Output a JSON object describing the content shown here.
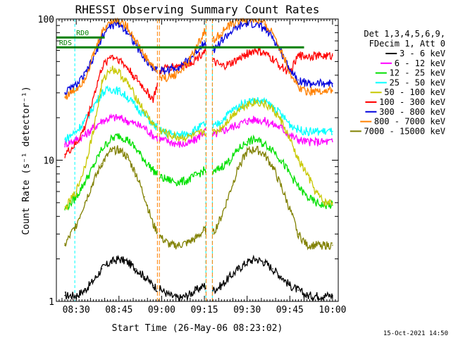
{
  "chart_data": {
    "type": "line",
    "title": "RHESSI Observing Summary Count Rates",
    "xlabel": "Start Time (26-May-06 08:23:02)",
    "ylabel": "Count Rate (s⁻¹ detector⁻¹)",
    "x_tick_labels": [
      "08:30",
      "08:45",
      "09:00",
      "09:15",
      "09:30",
      "09:45",
      "10:00"
    ],
    "x_tick_minutes": [
      510,
      525,
      540,
      555,
      570,
      585,
      600
    ],
    "xlim_minutes": [
      503.03,
      602.0
    ],
    "y_scale": "log",
    "ylim": [
      1,
      100
    ],
    "y_tick_labels": [
      "1",
      "10",
      "100"
    ],
    "y_tick_values": [
      1,
      10,
      100
    ],
    "grid": false,
    "legend_position": "right",
    "legend_header": [
      "Det 1,3,4,5,6,9,",
      "FDecim 1, Att 0"
    ],
    "gaps_minutes": [
      [
        538.5,
        539.2
      ],
      [
        555.6,
        557.8
      ]
    ],
    "sun_intervals_minutes": [
      [
        509.5,
        555.5
      ],
      [
        557.8,
        602
      ]
    ],
    "series": [
      {
        "name": "3 - 6 keV",
        "color": "#000000",
        "x": [
          506,
          510,
          513,
          516,
          519,
          522,
          525,
          528,
          531,
          534,
          537,
          540,
          543,
          546,
          549,
          552,
          555,
          558,
          561,
          564,
          567,
          570,
          573,
          576,
          579,
          582,
          585,
          588,
          591,
          594,
          597,
          600
        ],
        "y": [
          1.1,
          1.1,
          1.2,
          1.4,
          1.7,
          1.9,
          2.0,
          1.9,
          1.7,
          1.5,
          1.3,
          1.2,
          1.1,
          1.05,
          1.1,
          1.2,
          1.3,
          1.2,
          1.3,
          1.5,
          1.7,
          1.9,
          2.0,
          1.9,
          1.7,
          1.5,
          1.3,
          1.2,
          1.1,
          1.1,
          1.1,
          1.1
        ]
      },
      {
        "name": "6 - 12 keV",
        "color": "#ff00ff",
        "x": [
          506,
          510,
          513,
          516,
          519,
          522,
          525,
          528,
          531,
          534,
          537,
          540,
          543,
          546,
          549,
          552,
          555,
          558,
          561,
          564,
          567,
          570,
          573,
          576,
          579,
          582,
          585,
          588,
          591,
          594,
          597,
          600
        ],
        "y": [
          13,
          14,
          15,
          17,
          19,
          20,
          20,
          19,
          18,
          17,
          15,
          14,
          13.5,
          13,
          13,
          14,
          16,
          15,
          16,
          17,
          18,
          19,
          19.5,
          19,
          18,
          17,
          15,
          14,
          13.5,
          13.5,
          13.5,
          13.5
        ]
      },
      {
        "name": "12 - 25 keV",
        "color": "#00e000",
        "x": [
          506,
          510,
          513,
          516,
          519,
          522,
          525,
          528,
          531,
          534,
          537,
          540,
          543,
          546,
          549,
          552,
          555,
          558,
          561,
          564,
          567,
          570,
          573,
          576,
          579,
          582,
          585,
          588,
          591,
          594,
          597,
          600
        ],
        "y": [
          4.5,
          5.5,
          7,
          9,
          12,
          14,
          15,
          14,
          12,
          10,
          8.5,
          7.5,
          7.2,
          7,
          7.2,
          7.8,
          8.5,
          8,
          9,
          10,
          12,
          13.5,
          14,
          13,
          12,
          10,
          8,
          6.5,
          5.5,
          5,
          4.8,
          4.8
        ]
      },
      {
        "name": "25 - 50 keV",
        "color": "#00ffff",
        "x": [
          506,
          510,
          513,
          516,
          519,
          522,
          525,
          528,
          531,
          534,
          537,
          540,
          543,
          546,
          549,
          552,
          555,
          558,
          561,
          564,
          567,
          570,
          573,
          576,
          579,
          582,
          585,
          588,
          591,
          594,
          597,
          600
        ],
        "y": [
          14,
          16,
          19,
          24,
          30,
          32,
          31,
          28,
          24,
          21,
          18,
          16,
          15.5,
          15,
          15.5,
          16.5,
          18,
          17,
          19,
          22,
          24,
          26,
          26.5,
          26,
          24,
          21,
          18,
          16.5,
          16,
          16,
          16,
          16
        ]
      },
      {
        "name": "50 - 100 keV",
        "color": "#c8c800",
        "x": [
          506,
          510,
          513,
          516,
          519,
          522,
          525,
          528,
          531,
          534,
          537,
          540,
          543,
          546,
          549,
          552,
          555,
          558,
          561,
          564,
          567,
          570,
          573,
          576,
          579,
          582,
          585,
          588,
          591,
          594,
          597,
          600
        ],
        "y": [
          4.5,
          6,
          9,
          16,
          35,
          45,
          42,
          35,
          28,
          22,
          18,
          16,
          15,
          14.5,
          14.5,
          15,
          16,
          15.5,
          17,
          20,
          23,
          25,
          26,
          25,
          23,
          19,
          14,
          10,
          8,
          6,
          5,
          5
        ]
      },
      {
        "name": "100 - 300 keV",
        "color": "#ff0000",
        "x": [
          506,
          510,
          513,
          516,
          519,
          522,
          525,
          528,
          531,
          534,
          537,
          540,
          543,
          546,
          549,
          552,
          555,
          558,
          561,
          564,
          567,
          570,
          573,
          576,
          579,
          582,
          585,
          588,
          591,
          594,
          597,
          600
        ],
        "y": [
          11,
          13,
          17,
          28,
          45,
          55,
          52,
          45,
          38,
          32,
          27,
          44,
          46,
          47,
          48,
          52,
          60,
          50,
          46,
          48,
          52,
          57,
          60,
          57,
          52,
          46,
          42,
          55,
          55,
          55,
          55,
          55
        ]
      },
      {
        "name": "300 - 800 keV",
        "color": "#0000dd",
        "x": [
          506,
          510,
          513,
          516,
          519,
          522,
          525,
          528,
          531,
          534,
          537,
          540,
          543,
          546,
          549,
          552,
          555,
          558,
          561,
          564,
          567,
          570,
          573,
          576,
          579,
          582,
          585,
          588,
          591,
          594,
          597,
          600
        ],
        "y": [
          30,
          34,
          40,
          52,
          75,
          90,
          92,
          82,
          65,
          52,
          45,
          43,
          44,
          46,
          50,
          58,
          70,
          60,
          70,
          80,
          88,
          93,
          92,
          86,
          74,
          58,
          44,
          37,
          35,
          35,
          35,
          35
        ]
      },
      {
        "name": "800 - 7000 keV",
        "color": "#ff8000",
        "x": [
          506,
          510,
          513,
          516,
          519,
          522,
          525,
          528,
          531,
          534,
          537,
          540,
          543,
          546,
          549,
          552,
          555,
          558,
          561,
          564,
          567,
          570,
          573,
          576,
          579,
          582,
          585,
          588,
          591,
          594,
          597,
          600
        ],
        "y": [
          28,
          32,
          38,
          55,
          80,
          98,
          98,
          88,
          70,
          55,
          46,
          38,
          39,
          42,
          48,
          62,
          82,
          70,
          80,
          90,
          98,
          100,
          98,
          92,
          80,
          60,
          42,
          33,
          31,
          31,
          31,
          31
        ]
      },
      {
        "name": "7000 - 15000 keV",
        "color": "#808000",
        "x": [
          506,
          510,
          513,
          516,
          519,
          522,
          525,
          528,
          531,
          534,
          537,
          540,
          543,
          546,
          549,
          552,
          555,
          558,
          561,
          564,
          567,
          570,
          573,
          576,
          579,
          582,
          585,
          588,
          591,
          594,
          597,
          600
        ],
        "y": [
          2.5,
          3.5,
          5,
          7,
          9.5,
          11.5,
          12,
          10.5,
          8,
          5.5,
          3.5,
          2.8,
          2.5,
          2.5,
          2.6,
          2.8,
          3.2,
          3,
          4,
          6,
          9,
          11.5,
          12,
          11,
          9,
          6.5,
          4.5,
          3,
          2.5,
          2.5,
          2.5,
          2.5
        ]
      }
    ],
    "annotations": [
      {
        "text": "RD0",
        "color": "#008000",
        "level": 74,
        "x_range": [
          503.03,
          520
        ],
        "label_at": 510
      },
      {
        "text": "RDS",
        "color": "#008000",
        "level": 63,
        "x_range": [
          503.03,
          590
        ],
        "label_at": 504
      }
    ]
  },
  "footer": {
    "timestamp": "15-Oct-2021 14:50"
  }
}
